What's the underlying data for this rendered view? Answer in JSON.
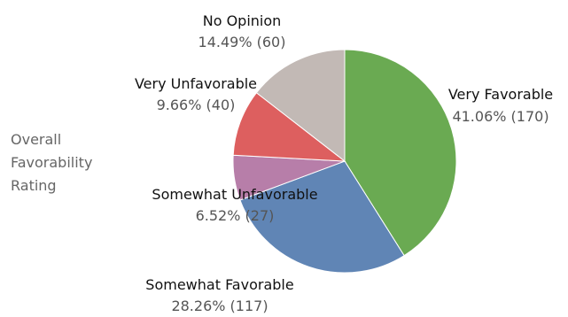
{
  "rating_label": [
    "Overall",
    "Favorability",
    "Rating"
  ],
  "chart_data": {
    "type": "pie",
    "title": "",
    "slices": [
      {
        "label": "Very Favorable",
        "percent": "41.06%",
        "count": 170,
        "color": "#6aaa52"
      },
      {
        "label": "Somewhat Favorable",
        "percent": "28.26%",
        "count": 117,
        "color": "#6085b5"
      },
      {
        "label": "Somewhat Unfavorable",
        "percent": "6.52%",
        "count": 27,
        "color": "#b77ea9"
      },
      {
        "label": "Very Unfavorable",
        "percent": "9.66%",
        "count": 40,
        "color": "#dd5f5f"
      },
      {
        "label": "No Opinion",
        "percent": "14.49%",
        "count": 60,
        "color": "#c2b9b5"
      }
    ]
  }
}
